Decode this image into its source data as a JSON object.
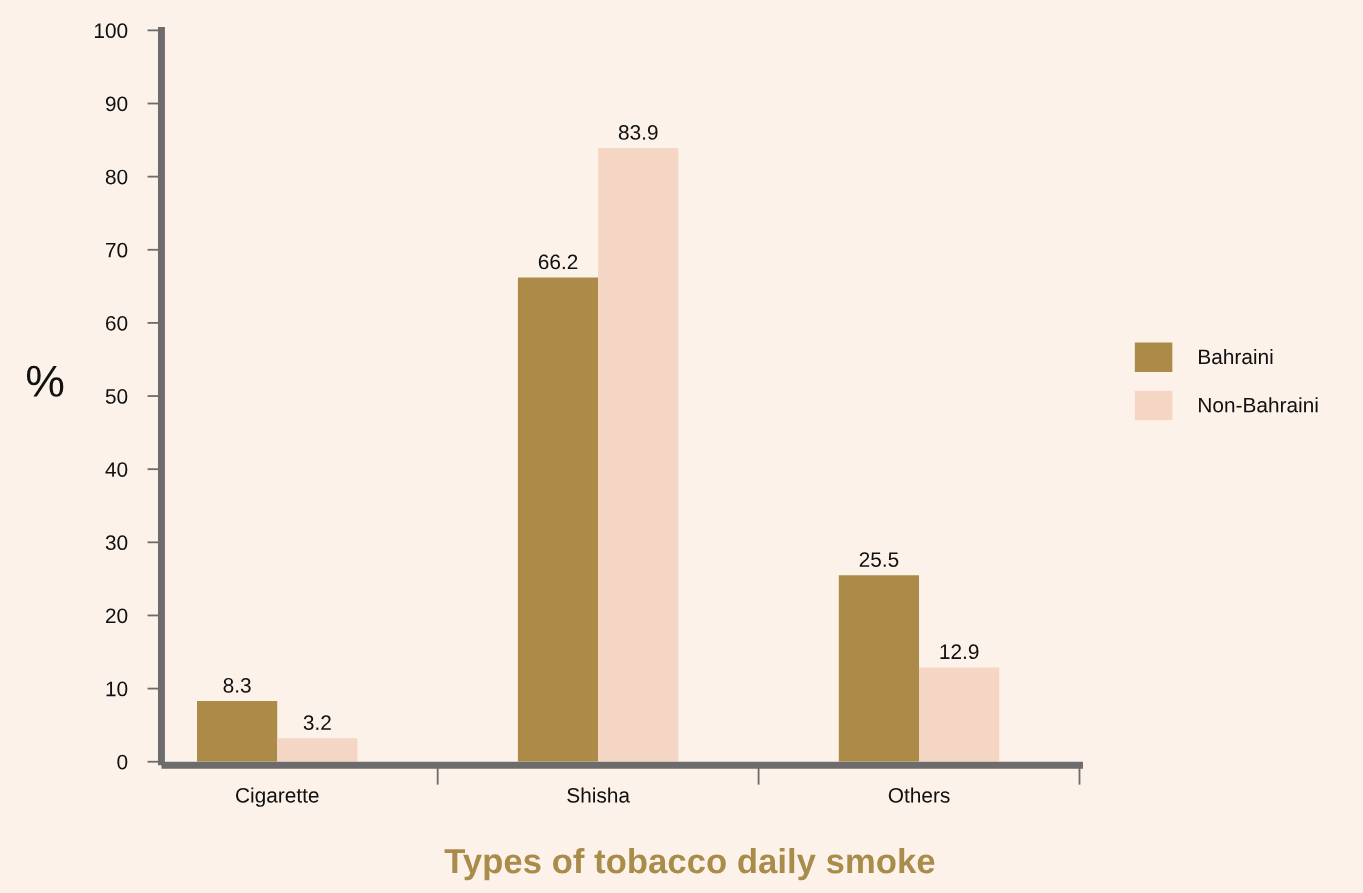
{
  "chart_data": {
    "type": "bar",
    "xlabel": "Types of tobacco daily smoke",
    "ylabel": "%",
    "categories": [
      "Cigarette",
      "Shisha",
      "Others"
    ],
    "series": [
      {
        "name": "Bahraini",
        "color": "#ab8b47",
        "values": [
          8.3,
          66.2,
          25.5
        ]
      },
      {
        "name": "Non-Bahraini",
        "color": "#f5d5c4",
        "values": [
          3.2,
          83.9,
          12.9
        ]
      }
    ],
    "ylim": [
      0,
      100
    ],
    "yticks": [
      0,
      10,
      20,
      30,
      40,
      50,
      60,
      70,
      80,
      90,
      100
    ],
    "data_labels": true,
    "legend": "right",
    "grid": false
  }
}
